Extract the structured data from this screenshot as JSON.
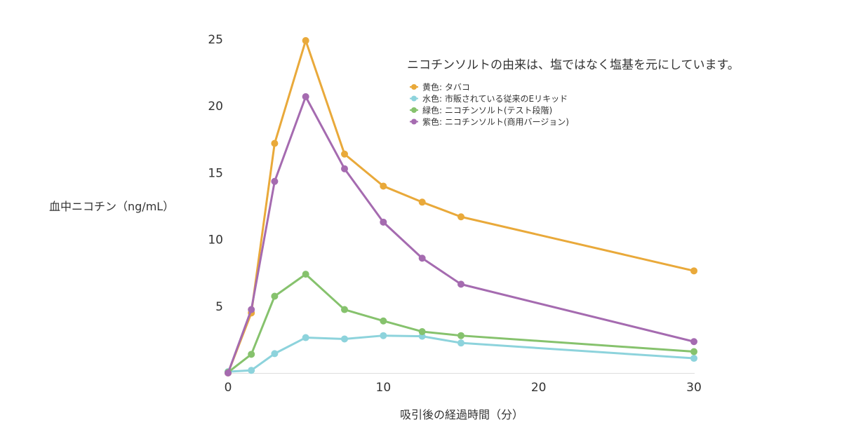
{
  "chart_data": {
    "type": "line",
    "title": "ニコチンソルトの由来は、塩ではなく塩基を元にしています。",
    "xlabel": "吸引後の経過時間（分）",
    "ylabel": "血中ニコチン（ng/mL）",
    "xlim": [
      0,
      30
    ],
    "ylim": [
      0,
      25
    ],
    "xticks": [
      0,
      10,
      20,
      30
    ],
    "yticks": [
      5,
      10,
      15,
      20,
      25
    ],
    "grid": false,
    "legend_position": "top-right",
    "x": [
      0,
      1.5,
      3,
      5,
      7.5,
      10,
      12.5,
      15,
      30
    ],
    "series": [
      {
        "name": "黄色: タバコ",
        "color": "#e9a93a",
        "values": [
          0,
          4.5,
          17.2,
          24.9,
          16.4,
          14.0,
          12.8,
          11.7,
          7.65
        ]
      },
      {
        "name": "水色: 市販されている従来のEリキッド",
        "color": "#8dd3dc",
        "values": [
          0.1,
          0.2,
          1.45,
          2.65,
          2.55,
          2.8,
          2.75,
          2.25,
          1.1
        ]
      },
      {
        "name": "緑色: ニコチンソルト(テスト段階)",
        "color": "#86c26d",
        "values": [
          0.05,
          1.4,
          5.75,
          7.4,
          4.75,
          3.9,
          3.1,
          2.8,
          1.6
        ]
      },
      {
        "name": "紫色: ニコチンソルト(商用バージョン)",
        "color": "#a56bb0",
        "values": [
          0,
          4.75,
          14.35,
          20.7,
          15.3,
          11.3,
          8.6,
          6.65,
          2.35
        ]
      }
    ]
  }
}
